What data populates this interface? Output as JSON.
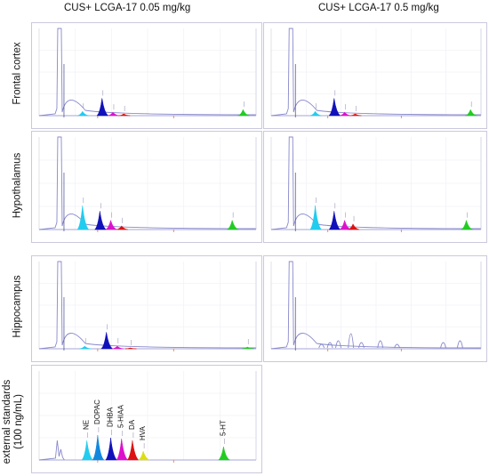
{
  "column_titles": [
    "CUS+ LCGA-17 0.05 mg/kg",
    "CUS+ LCGA-17 0.5 mg/kg"
  ],
  "row_labels": {
    "frontal": "Frontal cortex",
    "hypothalamus": "Hypothalamus",
    "hippocampus": "Hippocampus",
    "standards_line1": "external standards",
    "standards_line2": "(100 ng/mL)"
  },
  "colors": {
    "NE": "#22ccee",
    "DOPAC": "#1188dd",
    "DHBA": "#1111bb",
    "5-HIAA": "#dd11cc",
    "DA": "#dd1111",
    "HVA": "#dddd11",
    "5-HT": "#22cc22",
    "trace": "#8888cc",
    "axis_ticks": "#ee7722"
  },
  "chart_data": [
    {
      "id": "frontal-low",
      "type": "line",
      "peaks": [
        {
          "compound": "NE",
          "x": 0.2,
          "h": 0.05
        },
        {
          "compound": "DHBA",
          "x": 0.29,
          "h": 0.2
        },
        {
          "compound": "5-HIAA",
          "x": 0.34,
          "h": 0.04
        },
        {
          "compound": "DA",
          "x": 0.39,
          "h": 0.02
        },
        {
          "compound": "5-HT",
          "x": 0.94,
          "h": 0.07
        }
      ]
    },
    {
      "id": "frontal-high",
      "type": "line",
      "peaks": [
        {
          "compound": "NE",
          "x": 0.21,
          "h": 0.05
        },
        {
          "compound": "DHBA",
          "x": 0.3,
          "h": 0.2
        },
        {
          "compound": "5-HIAA",
          "x": 0.35,
          "h": 0.04
        },
        {
          "compound": "DA",
          "x": 0.4,
          "h": 0.02
        },
        {
          "compound": "5-HT",
          "x": 0.95,
          "h": 0.07
        }
      ]
    },
    {
      "id": "hypothalamus-low",
      "type": "line",
      "peaks": [
        {
          "compound": "NE",
          "x": 0.2,
          "h": 0.26
        },
        {
          "compound": "DHBA",
          "x": 0.28,
          "h": 0.2
        },
        {
          "compound": "5-HIAA",
          "x": 0.33,
          "h": 0.1
        },
        {
          "compound": "DA",
          "x": 0.38,
          "h": 0.04
        },
        {
          "compound": "5-HT",
          "x": 0.89,
          "h": 0.1
        }
      ]
    },
    {
      "id": "hypothalamus-high",
      "type": "line",
      "peaks": [
        {
          "compound": "NE",
          "x": 0.21,
          "h": 0.26
        },
        {
          "compound": "DHBA",
          "x": 0.3,
          "h": 0.2
        },
        {
          "compound": "5-HIAA",
          "x": 0.35,
          "h": 0.1
        },
        {
          "compound": "DA",
          "x": 0.39,
          "h": 0.06
        },
        {
          "compound": "5-HT",
          "x": 0.93,
          "h": 0.1
        }
      ]
    },
    {
      "id": "hippocampus-low",
      "type": "line",
      "peaks": [
        {
          "compound": "NE",
          "x": 0.21,
          "h": 0.03
        },
        {
          "compound": "DHBA",
          "x": 0.31,
          "h": 0.19
        },
        {
          "compound": "5-HIAA",
          "x": 0.36,
          "h": 0.03
        },
        {
          "compound": "DA",
          "x": 0.42,
          "h": 0.01
        },
        {
          "compound": "5-HT",
          "x": 0.96,
          "h": 0.02
        }
      ]
    },
    {
      "id": "hippocampus-high",
      "type": "line",
      "peaks": []
    },
    {
      "id": "standards",
      "type": "line",
      "peaks": [
        {
          "compound": "NE",
          "x": 0.22,
          "h": 0.22
        },
        {
          "compound": "DOPAC",
          "x": 0.27,
          "h": 0.28
        },
        {
          "compound": "DHBA",
          "x": 0.33,
          "h": 0.25
        },
        {
          "compound": "5-HIAA",
          "x": 0.38,
          "h": 0.24
        },
        {
          "compound": "DA",
          "x": 0.43,
          "h": 0.22
        },
        {
          "compound": "HVA",
          "x": 0.48,
          "h": 0.1
        },
        {
          "compound": "5-HT",
          "x": 0.85,
          "h": 0.15
        }
      ]
    }
  ]
}
